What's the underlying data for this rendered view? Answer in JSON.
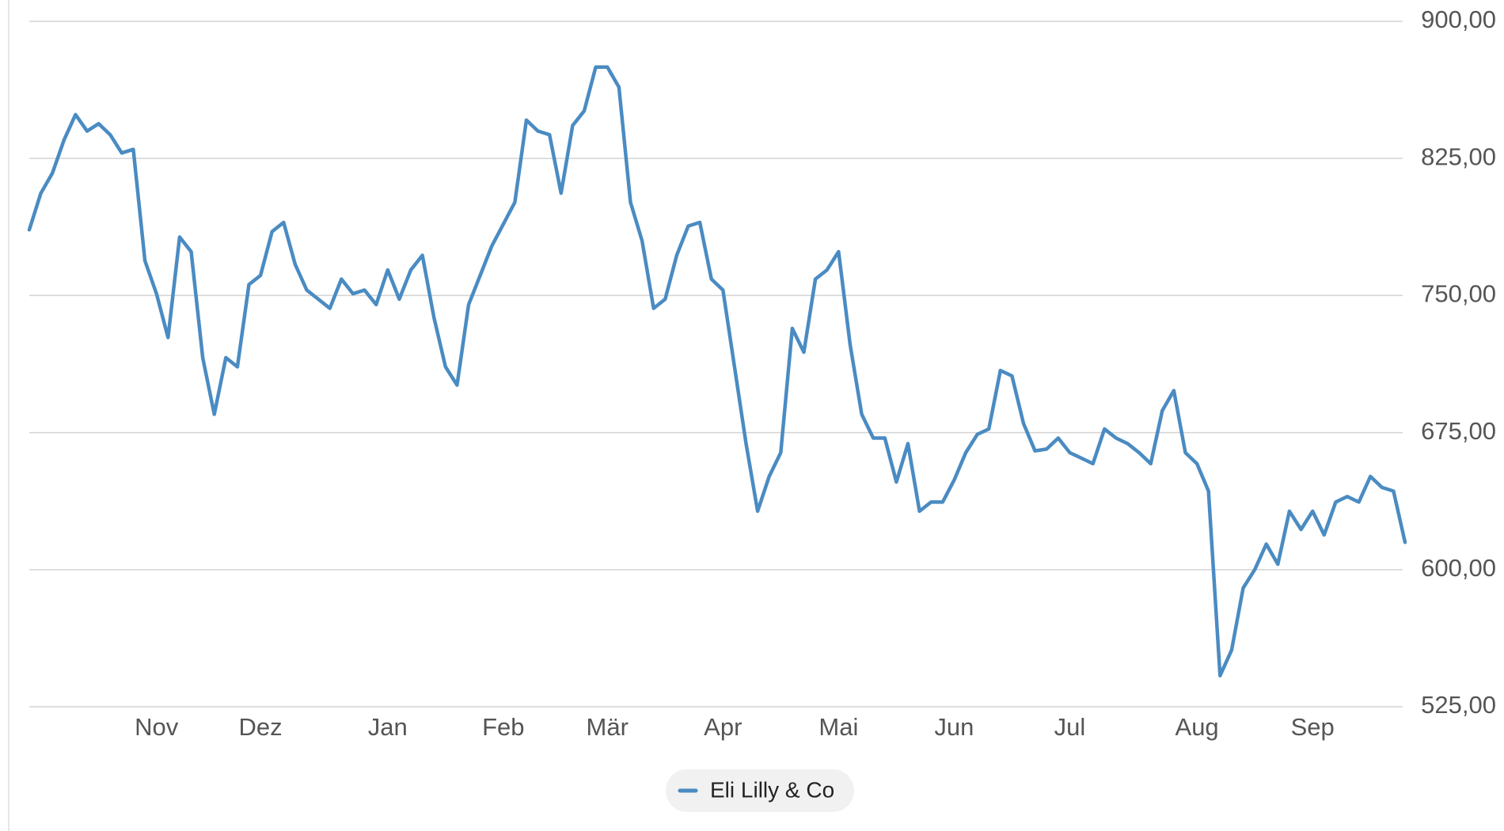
{
  "chart_data": {
    "type": "line",
    "categories": [
      null,
      null,
      null,
      null,
      null,
      null,
      null,
      null,
      null,
      null,
      null,
      "Nov",
      null,
      null,
      null,
      null,
      null,
      null,
      null,
      null,
      "Dez",
      null,
      null,
      null,
      null,
      null,
      null,
      null,
      null,
      null,
      null,
      "Jan",
      null,
      null,
      null,
      null,
      null,
      null,
      null,
      null,
      null,
      "Feb",
      null,
      null,
      null,
      null,
      null,
      null,
      null,
      null,
      "Mär",
      null,
      null,
      null,
      null,
      null,
      null,
      null,
      null,
      null,
      "Apr",
      null,
      null,
      null,
      null,
      null,
      null,
      null,
      null,
      null,
      "Mai",
      null,
      null,
      null,
      null,
      null,
      null,
      null,
      null,
      null,
      "Jun",
      null,
      null,
      null,
      null,
      null,
      null,
      null,
      null,
      null,
      "Jul",
      null,
      null,
      null,
      null,
      null,
      null,
      null,
      null,
      null,
      null,
      "Aug",
      null,
      null,
      null,
      null,
      null,
      null,
      null,
      null,
      null,
      "Sep",
      null,
      null,
      null,
      null,
      null,
      null,
      null,
      null
    ],
    "series": [
      {
        "name": "Eli Lilly & Co",
        "color": "#4a8bc2",
        "values": [
          786,
          806,
          817,
          835,
          849,
          840,
          844,
          838,
          828,
          830,
          769,
          751,
          727,
          782,
          774,
          716,
          685,
          716,
          711,
          756,
          761,
          785,
          790,
          767,
          753,
          748,
          743,
          759,
          751,
          753,
          745,
          764,
          748,
          764,
          772,
          738,
          711,
          701,
          745,
          761,
          777,
          789,
          801,
          846,
          840,
          838,
          806,
          843,
          851,
          875,
          875,
          864,
          801,
          780,
          743,
          748,
          772,
          788,
          790,
          759,
          753,
          711,
          669,
          632,
          651,
          664,
          732,
          719,
          759,
          764,
          774,
          723,
          685,
          672,
          672,
          648,
          669,
          632,
          637,
          637,
          649,
          664,
          674,
          677,
          709,
          706,
          680,
          665,
          666,
          672,
          664,
          661,
          658,
          677,
          672,
          669,
          664,
          658,
          687,
          698,
          664,
          658,
          643,
          542,
          556,
          590,
          600,
          614,
          603,
          632,
          622,
          632,
          619,
          637,
          640,
          637,
          651,
          645,
          643,
          615
        ]
      }
    ],
    "ylim": [
      525,
      900
    ],
    "yticks": [
      {
        "value": 525,
        "label": "525,00"
      },
      {
        "value": 600,
        "label": "600,00"
      },
      {
        "value": 675,
        "label": "675,00"
      },
      {
        "value": 750,
        "label": "750,00"
      },
      {
        "value": 825,
        "label": "825,00"
      },
      {
        "value": 900,
        "label": "900,00"
      }
    ],
    "grid": true,
    "legend": "bottom"
  }
}
